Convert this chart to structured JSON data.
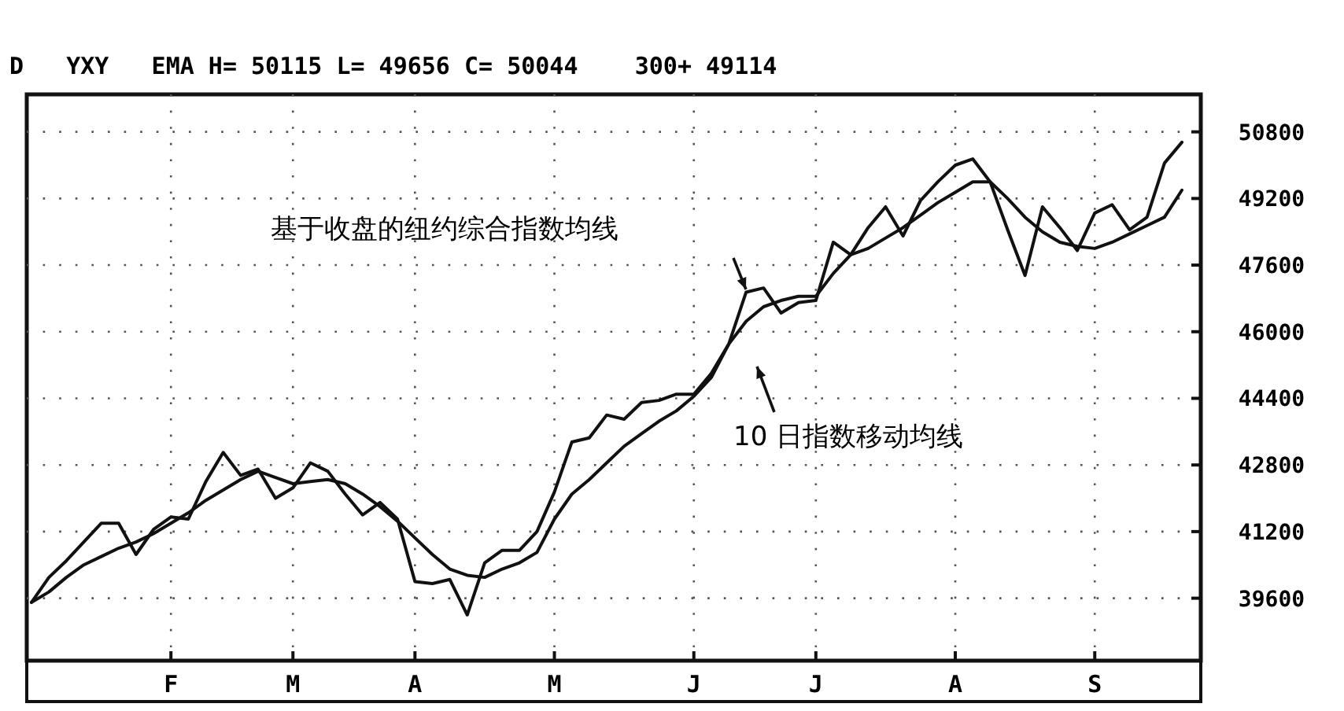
{
  "chart_data": {
    "type": "line",
    "title": "D   YXY   EMA H= 50115 L= 49656 C= 50044    300+ 49114",
    "categories": [
      null,
      null,
      null,
      null,
      null,
      null,
      null,
      null,
      "F",
      null,
      null,
      null,
      null,
      null,
      null,
      "M",
      null,
      null,
      null,
      null,
      null,
      null,
      "A",
      null,
      null,
      null,
      null,
      null,
      null,
      null,
      "M",
      null,
      null,
      null,
      null,
      null,
      null,
      null,
      "J",
      null,
      null,
      null,
      null,
      null,
      null,
      "J",
      null,
      null,
      null,
      null,
      null,
      null,
      null,
      "A",
      null,
      null,
      null,
      null,
      null,
      null,
      null,
      "S",
      null,
      null,
      null,
      null,
      null
    ],
    "ylim": [
      38100,
      51700
    ],
    "yticks": [
      39600,
      41200,
      42800,
      44400,
      46000,
      47600,
      49200,
      50800
    ],
    "grid": true,
    "marker": "none",
    "line_style": "solid",
    "series": [
      {
        "color": "#111111",
        "values": [
          39500,
          40100,
          40500,
          40950,
          41400,
          41400,
          40650,
          41250,
          41550,
          41500,
          42400,
          43100,
          42550,
          42700,
          42000,
          42250,
          42850,
          42650,
          42100,
          41600,
          41900,
          41500,
          40000,
          39950,
          40050,
          39200,
          40450,
          40750,
          40750,
          41200,
          42150,
          43350,
          43450,
          44000,
          43900,
          44300,
          44350,
          44500,
          44500,
          45000,
          45700,
          46950,
          47050,
          46450,
          46700,
          46750,
          48150,
          47850,
          48500,
          49000,
          48300,
          49150,
          49600,
          50000,
          50150,
          49600,
          48450,
          47350,
          49000,
          48500,
          47950,
          48850,
          49050,
          48450,
          48750,
          50050,
          50550
        ]
      },
      {
        "color": "#111111",
        "values": [
          39500,
          39750,
          40100,
          40400,
          40600,
          40800,
          40950,
          41150,
          41400,
          41650,
          41950,
          42200,
          42450,
          42650,
          42500,
          42350,
          42400,
          42450,
          42350,
          42100,
          41800,
          41450,
          41050,
          40650,
          40300,
          40150,
          40100,
          40300,
          40450,
          40700,
          41500,
          42100,
          42450,
          42850,
          43250,
          43550,
          43850,
          44100,
          44450,
          44900,
          45700,
          46250,
          46600,
          46750,
          46850,
          46850,
          47400,
          47850,
          48000,
          48250,
          48500,
          48800,
          49100,
          49350,
          49600,
          49600,
          49200,
          48750,
          48400,
          48150,
          48050,
          48000,
          48150,
          48350,
          48550,
          48750,
          49400
        ]
      }
    ],
    "annotations": [
      "基于收盘的纽约综合指数均线",
      "10 日指数移动均线"
    ]
  }
}
